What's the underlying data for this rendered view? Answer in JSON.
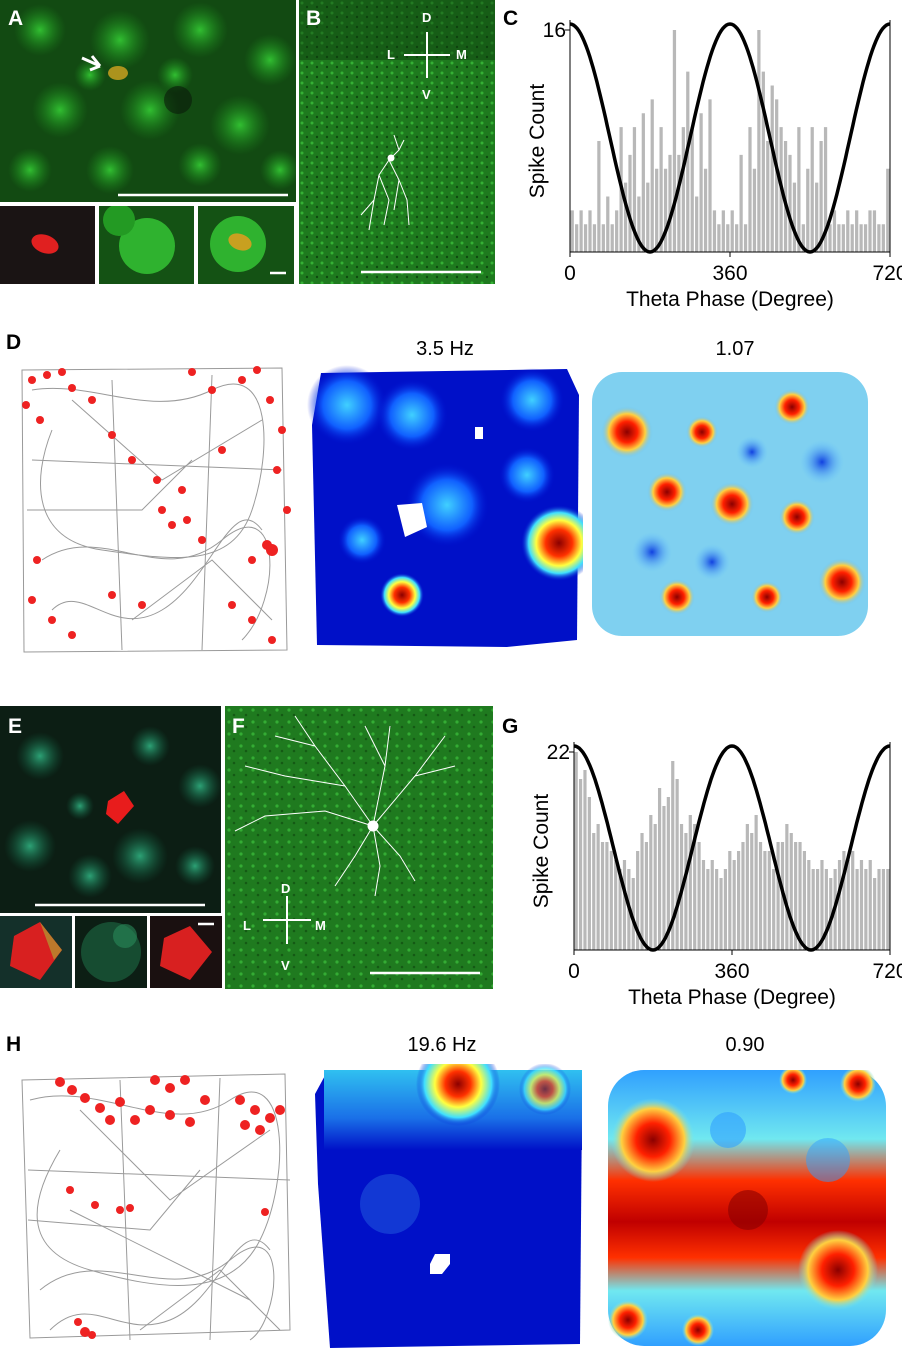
{
  "figure": {
    "panels": {
      "A": "A",
      "B": "B",
      "C": "C",
      "D": "D",
      "E": "E",
      "F": "F",
      "G": "G",
      "H": "H"
    },
    "compass": {
      "dorsal": "D",
      "ventral": "V",
      "lateral": "L",
      "medial": "M"
    },
    "map_titles": {
      "D_rate": "3.5 Hz",
      "D_autocorr": "1.07",
      "H_rate": "19.6 Hz",
      "H_autocorr": "0.90"
    },
    "colors": {
      "histogram_bar": "#b8b8b8",
      "theta_curve": "#000000",
      "spike": "#ee2222",
      "path": "#999999",
      "fluorescence_green": "#1fa01f",
      "fluorescence_red": "#e02020"
    }
  },
  "chart_data": [
    {
      "panel": "C",
      "type": "bar",
      "xlabel": "Theta Phase (Degree)",
      "ylabel": "Spike Count",
      "xlim": [
        0,
        720
      ],
      "ylim": [
        0,
        16
      ],
      "x_ticks": [
        "0",
        "360",
        "720"
      ],
      "y_ticks": [
        "16"
      ],
      "bin_width": 20,
      "values": [
        3,
        2,
        3,
        2,
        3,
        2,
        8,
        2,
        4,
        2,
        3,
        9,
        5,
        7,
        9,
        4,
        10,
        5,
        11,
        6,
        9,
        6,
        7,
        16,
        7,
        9,
        13,
        9,
        4,
        10,
        6,
        11,
        3,
        2,
        3,
        2,
        3,
        2,
        7,
        2,
        9,
        6,
        16,
        13,
        8,
        12,
        11,
        9,
        8,
        7,
        5,
        9,
        2,
        6,
        9,
        5,
        8,
        9,
        2,
        3,
        2,
        2,
        3,
        2,
        3,
        2,
        2,
        3,
        3,
        2,
        2,
        6
      ],
      "theta_cosine": {
        "peak_phase": 360,
        "trough_phase": 180,
        "period": 360
      }
    },
    {
      "panel": "G",
      "type": "bar",
      "xlabel": "Theta Phase (Degree)",
      "ylabel": "Spike Count",
      "xlim": [
        0,
        720
      ],
      "ylim": [
        0,
        22
      ],
      "x_ticks": [
        "0",
        "360",
        "720"
      ],
      "y_ticks": [
        "22"
      ],
      "bin_width": 20,
      "values": [
        22,
        19,
        20,
        17,
        13,
        14,
        12,
        12,
        11,
        10,
        9,
        10,
        9,
        8,
        11,
        13,
        12,
        15,
        14,
        18,
        16,
        17,
        21,
        19,
        14,
        13,
        15,
        14,
        12,
        10,
        9,
        10,
        9,
        8,
        9,
        11,
        10,
        11,
        12,
        14,
        13,
        15,
        12,
        11,
        11,
        9,
        12,
        12,
        14,
        13,
        12,
        12,
        11,
        10,
        9,
        9,
        10,
        9,
        8,
        9,
        10,
        11,
        10,
        11,
        9,
        10,
        9,
        10,
        8,
        9,
        9,
        9
      ],
      "theta_cosine": {
        "peak_phase": 360,
        "trough_phase": 180,
        "period": 360
      }
    }
  ]
}
